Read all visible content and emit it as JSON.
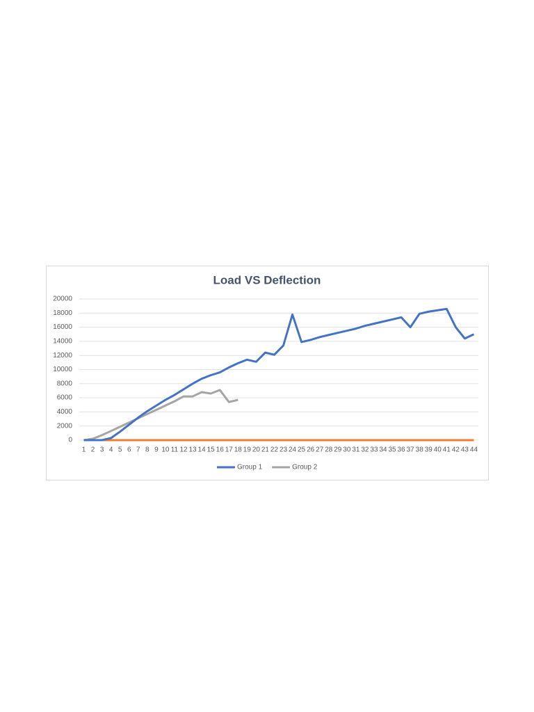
{
  "chart_data": {
    "type": "line",
    "title": "Load VS Deflection",
    "categories": [
      1,
      2,
      3,
      4,
      5,
      6,
      7,
      8,
      9,
      10,
      11,
      12,
      13,
      14,
      15,
      16,
      17,
      18,
      19,
      20,
      21,
      22,
      23,
      24,
      25,
      26,
      27,
      28,
      29,
      30,
      31,
      32,
      33,
      34,
      35,
      36,
      37,
      38,
      39,
      40,
      41,
      42,
      43,
      44
    ],
    "series": [
      {
        "name": "Group 1",
        "color": "#4472c4",
        "values": [
          0,
          0,
          0,
          300,
          1200,
          2200,
          3200,
          4100,
          4900,
          5700,
          6400,
          7200,
          8000,
          8700,
          9200,
          9600,
          10300,
          10900,
          11400,
          11100,
          12400,
          12100,
          13400,
          17800,
          13900,
          14200,
          14600,
          14900,
          15200,
          15500,
          15800,
          16200,
          16500,
          16800,
          17100,
          17400,
          16000,
          17900,
          18200,
          18400,
          18600,
          16000,
          14400,
          15000
        ]
      },
      {
        "name": "Group 2",
        "color": "#a5a5a5",
        "values": [
          0,
          200,
          700,
          1300,
          1900,
          2500,
          3100,
          3700,
          4300,
          4900,
          5500,
          6200,
          6200,
          6800,
          6600,
          7100,
          5400,
          5700,
          null,
          null,
          null,
          null,
          null,
          null,
          null,
          null,
          null,
          null,
          null,
          null,
          null,
          null,
          null,
          null,
          null,
          null,
          null,
          null,
          null,
          null,
          null,
          null,
          null,
          null
        ]
      },
      {
        "color": "#ed7d31",
        "values": [
          0,
          0,
          0,
          0,
          0,
          0,
          0,
          0,
          0,
          0,
          0,
          0,
          0,
          0,
          0,
          0,
          0,
          0,
          0,
          0,
          0,
          0,
          0,
          0,
          0,
          0,
          0,
          0,
          0,
          0,
          0,
          0,
          0,
          0,
          0,
          0,
          0,
          0,
          0,
          0,
          0,
          0,
          0,
          0
        ]
      },
      {
        "color": "#ffc000",
        "values": [
          0,
          0,
          0,
          0,
          0,
          0,
          0,
          0,
          0,
          0,
          0,
          0,
          0,
          0,
          0,
          0,
          0,
          0,
          null,
          null,
          null,
          null,
          null,
          null,
          null,
          null,
          null,
          null,
          null,
          null,
          null,
          null,
          null,
          null,
          null,
          null,
          null,
          null,
          null,
          null,
          null,
          null,
          null,
          null
        ]
      }
    ],
    "ylim": [
      0,
      20000
    ],
    "yticks": [
      0,
      2000,
      4000,
      6000,
      8000,
      10000,
      12000,
      14000,
      16000,
      18000,
      20000
    ],
    "grid": true,
    "legend": "bottom"
  }
}
